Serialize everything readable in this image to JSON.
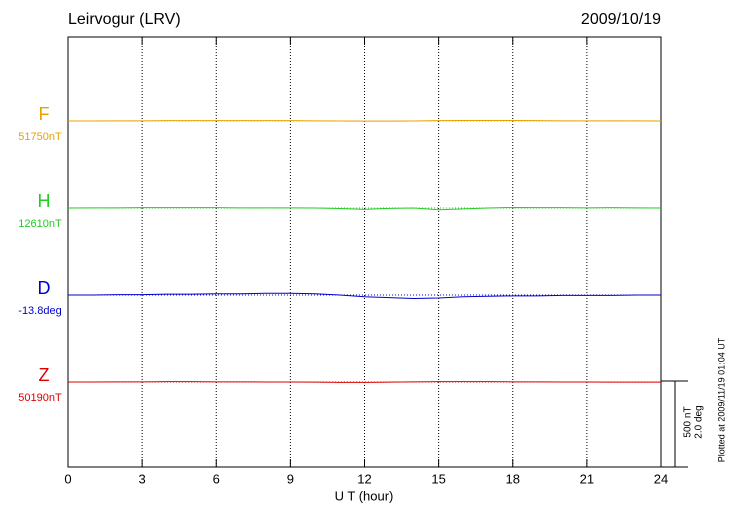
{
  "chart_data": {
    "type": "line",
    "title": "Leirvogur (LRV)",
    "date": "2009/10/19",
    "x_label": "U T (hour)",
    "plotted_note": "Plotted at 2009/11/19 01:04 UT",
    "x": [
      0,
      1,
      2,
      3,
      4,
      5,
      6,
      7,
      8,
      9,
      10,
      11,
      12,
      13,
      14,
      15,
      16,
      17,
      18,
      19,
      20,
      21,
      22,
      23,
      24
    ],
    "xlim": [
      0,
      24
    ],
    "xticks": [
      0,
      3,
      6,
      9,
      12,
      15,
      18,
      21,
      24
    ],
    "grid": true,
    "scale_bar": {
      "nT": 500,
      "deg": 2.0,
      "label_nT": "500 nT",
      "label_deg": "2.0 deg"
    },
    "series": [
      {
        "name": "F",
        "baseline": "51750nT",
        "color": "#e8a200",
        "values": [
          0,
          0,
          1,
          1,
          2,
          2,
          2,
          2,
          2,
          2,
          1,
          0,
          -1,
          -1,
          0,
          2,
          3,
          3,
          3,
          2,
          1,
          1,
          1,
          1,
          0
        ]
      },
      {
        "name": "H",
        "baseline": "12610nT",
        "color": "#22cc22",
        "values": [
          0,
          1,
          1,
          2,
          2,
          2,
          2,
          1,
          1,
          1,
          0,
          -3,
          -8,
          -2,
          0,
          -10,
          -5,
          0,
          3,
          2,
          2,
          1,
          2,
          1,
          0
        ]
      },
      {
        "name": "D",
        "baseline": "-13.8deg",
        "color": "#0000cc",
        "values": [
          0,
          0,
          0.01,
          0.01,
          0.02,
          0.02,
          0.03,
          0.03,
          0.04,
          0.04,
          0.03,
          0,
          -0.04,
          -0.06,
          -0.08,
          -0.07,
          -0.04,
          -0.03,
          -0.02,
          -0.02,
          -0.01,
          -0.01,
          -0.01,
          0,
          0
        ]
      },
      {
        "name": "Z",
        "baseline": "50190nT",
        "color": "#dd0000",
        "values": [
          0,
          0,
          1,
          1,
          2,
          2,
          1,
          1,
          0,
          0,
          -1,
          -2,
          -2,
          -1,
          1,
          2,
          2,
          2,
          1,
          1,
          0,
          0,
          -1,
          -1,
          -1
        ]
      }
    ]
  }
}
